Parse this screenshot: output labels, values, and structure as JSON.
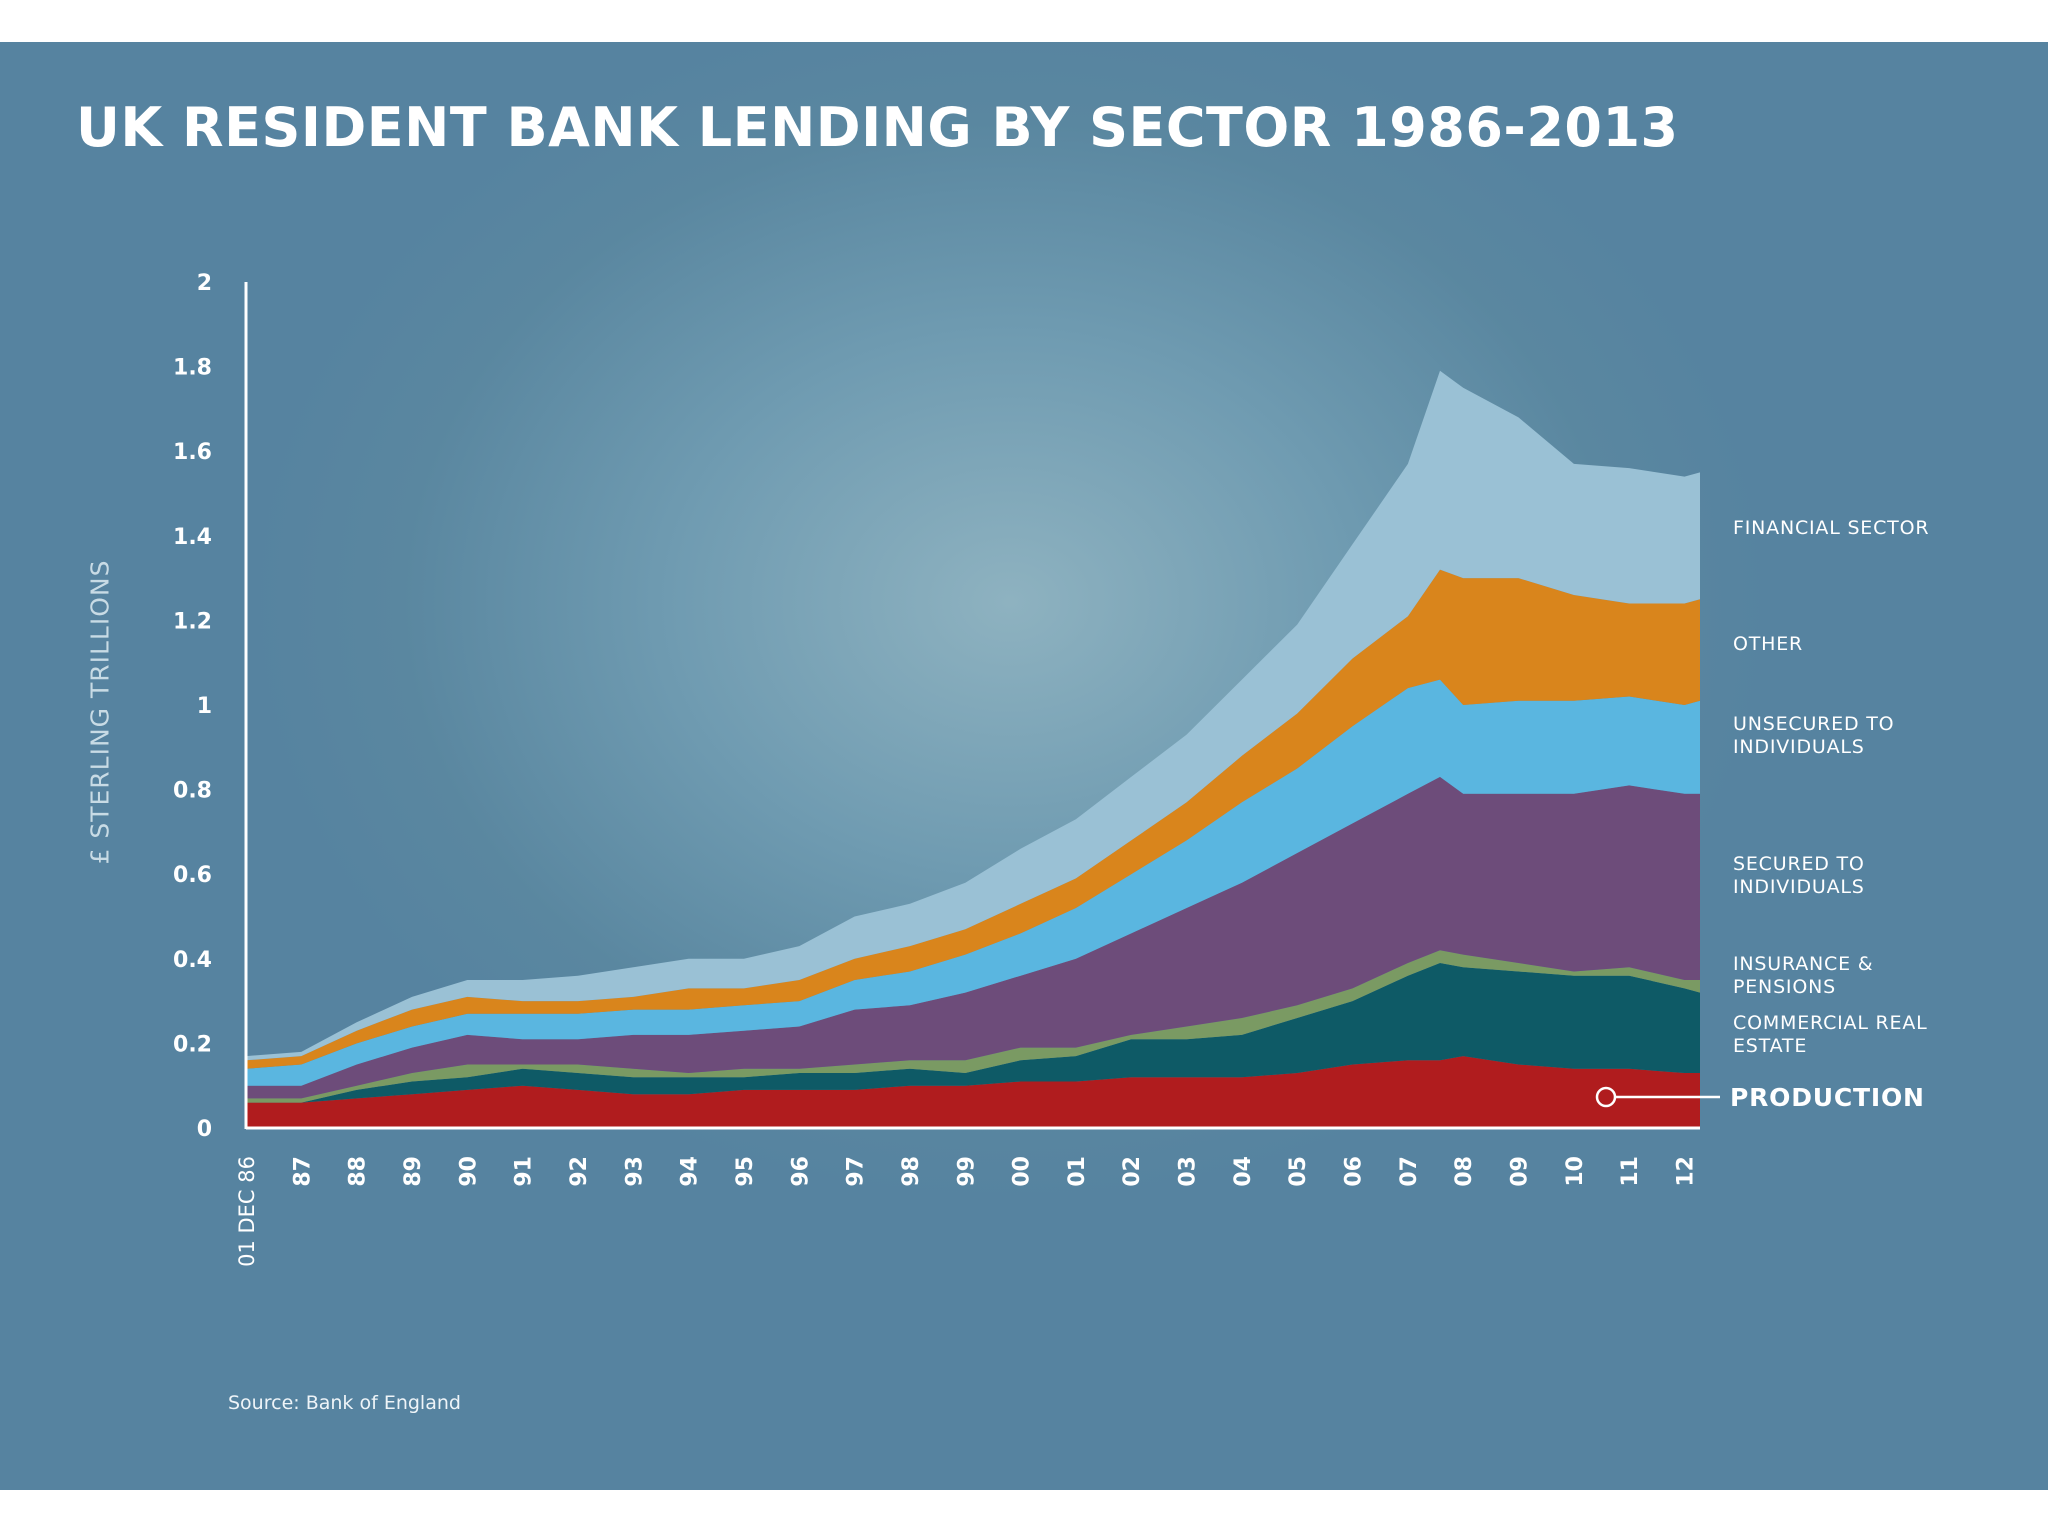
{
  "page": {
    "title": "UK RESIDENT BANK LENDING BY SECTOR 1986-2013",
    "source": "Source: Bank of England"
  },
  "chart_data": {
    "type": "area",
    "stacked": true,
    "title": "UK RESIDENT BANK LENDING BY SECTOR 1986-2013",
    "ylabel": "£ STERLING TRILLIONS",
    "xlabel": "",
    "ylim": [
      0,
      2
    ],
    "yticks": [
      "0",
      "0.2",
      "0.4",
      "0.6",
      "0.8",
      "1",
      "1.2",
      "1.4",
      "1.6",
      "1.8",
      "2"
    ],
    "xlim": [
      1986.92,
      2013.2
    ],
    "xticks": [
      {
        "x": 1986.92,
        "label": "01 DEC 86"
      },
      {
        "x": 1987.92,
        "label": "87"
      },
      {
        "x": 1988.92,
        "label": "88"
      },
      {
        "x": 1989.92,
        "label": "89"
      },
      {
        "x": 1990.92,
        "label": "90"
      },
      {
        "x": 1991.92,
        "label": "91"
      },
      {
        "x": 1992.92,
        "label": "92"
      },
      {
        "x": 1993.92,
        "label": "93"
      },
      {
        "x": 1994.92,
        "label": "94"
      },
      {
        "x": 1995.92,
        "label": "95"
      },
      {
        "x": 1996.92,
        "label": "96"
      },
      {
        "x": 1997.92,
        "label": "97"
      },
      {
        "x": 1998.92,
        "label": "98"
      },
      {
        "x": 1999.92,
        "label": "99"
      },
      {
        "x": 2000.92,
        "label": "00"
      },
      {
        "x": 2001.92,
        "label": "01"
      },
      {
        "x": 2002.92,
        "label": "02"
      },
      {
        "x": 2003.92,
        "label": "03"
      },
      {
        "x": 2004.92,
        "label": "04"
      },
      {
        "x": 2005.92,
        "label": "05"
      },
      {
        "x": 2006.92,
        "label": "06"
      },
      {
        "x": 2007.92,
        "label": "07"
      },
      {
        "x": 2008.92,
        "label": "08"
      },
      {
        "x": 2009.92,
        "label": "09"
      },
      {
        "x": 2010.92,
        "label": "10"
      },
      {
        "x": 2011.92,
        "label": "11"
      },
      {
        "x": 2012.92,
        "label": "12"
      }
    ],
    "x": [
      1986.92,
      1987.92,
      1988.92,
      1989.92,
      1990.92,
      1991.92,
      1992.92,
      1993.92,
      1994.92,
      1995.92,
      1996.92,
      1997.92,
      1998.92,
      1999.92,
      2000.92,
      2001.92,
      2002.92,
      2003.92,
      2004.92,
      2005.92,
      2006.92,
      2007.92,
      2008.5,
      2008.92,
      2009.92,
      2010.92,
      2011.92,
      2012.92,
      2013.2
    ],
    "series": [
      {
        "name": "PRODUCTION",
        "color": "#b01c1e",
        "values": [
          0.06,
          0.06,
          0.07,
          0.08,
          0.09,
          0.1,
          0.09,
          0.08,
          0.08,
          0.09,
          0.09,
          0.09,
          0.1,
          0.1,
          0.11,
          0.11,
          0.12,
          0.12,
          0.12,
          0.13,
          0.15,
          0.16,
          0.16,
          0.17,
          0.15,
          0.14,
          0.14,
          0.13,
          0.13
        ]
      },
      {
        "name": "COMMERCIAL REAL ESTATE",
        "color": "#0e5a66",
        "values": [
          0.0,
          0.0,
          0.02,
          0.03,
          0.03,
          0.04,
          0.04,
          0.04,
          0.04,
          0.03,
          0.04,
          0.04,
          0.04,
          0.03,
          0.05,
          0.06,
          0.09,
          0.09,
          0.1,
          0.13,
          0.15,
          0.2,
          0.23,
          0.21,
          0.22,
          0.22,
          0.22,
          0.2,
          0.19
        ]
      },
      {
        "name": "INSURANCE & PENSIONS",
        "color": "#7a9a63",
        "values": [
          0.01,
          0.01,
          0.01,
          0.02,
          0.03,
          0.01,
          0.02,
          0.02,
          0.01,
          0.02,
          0.01,
          0.02,
          0.02,
          0.03,
          0.03,
          0.02,
          0.01,
          0.03,
          0.04,
          0.03,
          0.03,
          0.03,
          0.03,
          0.03,
          0.02,
          0.01,
          0.02,
          0.02,
          0.03
        ]
      },
      {
        "name": "SECURED TO INDIVIDUALS",
        "color": "#6d4c7a",
        "values": [
          0.03,
          0.03,
          0.05,
          0.06,
          0.07,
          0.06,
          0.06,
          0.08,
          0.09,
          0.09,
          0.1,
          0.13,
          0.13,
          0.16,
          0.17,
          0.21,
          0.24,
          0.28,
          0.32,
          0.36,
          0.39,
          0.4,
          0.41,
          0.38,
          0.4,
          0.42,
          0.43,
          0.44,
          0.44
        ]
      },
      {
        "name": "UNSECURED TO INDIVIDUALS",
        "color": "#5ab6e0",
        "values": [
          0.04,
          0.05,
          0.05,
          0.05,
          0.05,
          0.06,
          0.06,
          0.06,
          0.06,
          0.06,
          0.06,
          0.07,
          0.08,
          0.09,
          0.1,
          0.12,
          0.14,
          0.16,
          0.19,
          0.2,
          0.23,
          0.25,
          0.23,
          0.21,
          0.22,
          0.22,
          0.21,
          0.21,
          0.22
        ]
      },
      {
        "name": "OTHER",
        "color": "#d9851c",
        "values": [
          0.02,
          0.02,
          0.03,
          0.04,
          0.04,
          0.03,
          0.03,
          0.03,
          0.05,
          0.04,
          0.05,
          0.05,
          0.06,
          0.06,
          0.07,
          0.07,
          0.08,
          0.09,
          0.11,
          0.13,
          0.16,
          0.17,
          0.26,
          0.3,
          0.29,
          0.25,
          0.22,
          0.24,
          0.24
        ]
      },
      {
        "name": "FINANCIAL SECTOR",
        "color": "#9ac1d5",
        "values": [
          0.01,
          0.01,
          0.02,
          0.03,
          0.04,
          0.05,
          0.06,
          0.07,
          0.07,
          0.07,
          0.08,
          0.1,
          0.1,
          0.11,
          0.13,
          0.14,
          0.15,
          0.16,
          0.18,
          0.21,
          0.27,
          0.36,
          0.47,
          0.45,
          0.38,
          0.31,
          0.32,
          0.3,
          0.3
        ]
      }
    ]
  }
}
